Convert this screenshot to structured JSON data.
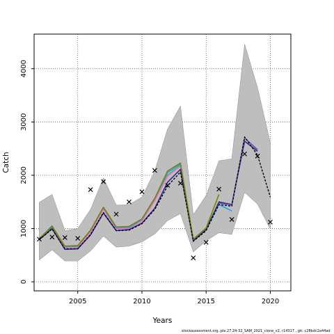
{
  "footer": "stockassessment.org, ple.27.24-32_SAM_2021_clone_v2, r14317 , git: c28bdc2a44ad",
  "chart_data": {
    "type": "line",
    "title": "",
    "xlabel": "Years",
    "ylabel": "Catch",
    "xlim": [
      2001.6,
      2021.6
    ],
    "ylim": [
      -170,
      4650
    ],
    "x_ticks": [
      2005,
      2010,
      2015,
      2020
    ],
    "y_ticks": [
      0,
      1000,
      2000,
      3000,
      4000
    ],
    "grid": "dotted",
    "legend": "none",
    "confidence_band": {
      "years": [
        2002,
        2003,
        2004,
        2005,
        2006,
        2007,
        2008,
        2009,
        2010,
        2011,
        2012,
        2013,
        2014,
        2015,
        2016,
        2017,
        2018,
        2019,
        2020
      ],
      "lower": [
        410,
        600,
        390,
        390,
        580,
        860,
        650,
        670,
        750,
        900,
        1150,
        1280,
        560,
        770,
        920,
        890,
        1680,
        1460,
        990
      ],
      "upper": [
        1490,
        1640,
        960,
        1000,
        1360,
        1950,
        1440,
        1450,
        1590,
        2080,
        2870,
        3300,
        1260,
        1620,
        2270,
        2310,
        4460,
        3650,
        2610
      ],
      "color": "#bebebe"
    },
    "observations": {
      "marker": "x",
      "years": [
        2002,
        2003,
        2004,
        2005,
        2006,
        2007,
        2008,
        2009,
        2010,
        2011,
        2012,
        2013,
        2014,
        2015,
        2016,
        2017,
        2018,
        2019,
        2020
      ],
      "values": [
        800,
        840,
        830,
        815,
        1730,
        1880,
        1270,
        1500,
        1690,
        2090,
        1810,
        1850,
        450,
        740,
        1740,
        1170,
        2400,
        2360,
        1120
      ]
    },
    "series": [
      {
        "color": "#35b779",
        "years": [
          2002,
          2003,
          2004,
          2005,
          2006,
          2007,
          2008,
          2009,
          2010,
          2011,
          2012,
          2013,
          2014
        ],
        "values": [
          800,
          1020,
          650,
          660,
          950,
          1380,
          1010,
          1020,
          1160,
          1550,
          2000,
          2190,
          780
        ]
      },
      {
        "color": "#ff6ec7",
        "years": [
          2002,
          2003,
          2004,
          2005,
          2006,
          2007,
          2008,
          2009,
          2010,
          2011,
          2012,
          2013,
          2014
        ],
        "values": [
          790,
          1000,
          640,
          640,
          930,
          1360,
          990,
          1000,
          1140,
          1520,
          1980,
          2170,
          780
        ]
      },
      {
        "color": "#20a4f3",
        "years": [
          2002,
          2003,
          2004,
          2005,
          2006,
          2007,
          2008,
          2009,
          2010,
          2011,
          2012,
          2013,
          2014,
          2015,
          2016,
          2017
        ],
        "values": [
          800,
          1050,
          660,
          670,
          960,
          1390,
          1010,
          1020,
          1170,
          1560,
          2050,
          2210,
          790,
          1000,
          1450,
          1330
        ]
      },
      {
        "color": "#2a2a8c",
        "years": [
          2002,
          2003,
          2004,
          2005,
          2006,
          2007,
          2008,
          2009,
          2010,
          2011,
          2012,
          2013,
          2014,
          2015,
          2016,
          2017,
          2018,
          2019
        ],
        "values": [
          790,
          1000,
          610,
          620,
          880,
          1290,
          960,
          980,
          1100,
          1380,
          1870,
          2110,
          770,
          980,
          1500,
          1450,
          2640,
          2450
        ]
      },
      {
        "color": "#6b4da8",
        "years": [
          2016,
          2017,
          2018,
          2019
        ],
        "values": [
          1480,
          1440,
          2700,
          2480
        ]
      },
      {
        "color": "#808000",
        "years": [
          2002,
          2003,
          2004,
          2005,
          2006,
          2007,
          2008,
          2009,
          2010,
          2011,
          2012,
          2013,
          2014,
          2015,
          2016
        ],
        "values": [
          810,
          1040,
          670,
          680,
          970,
          1400,
          1030,
          1040,
          1180,
          1570,
          2080,
          2230,
          800,
          1010,
          1640
        ]
      },
      {
        "color": "#000000",
        "dash": true,
        "years": [
          2002,
          2003,
          2004,
          2005,
          2006,
          2007,
          2008,
          2009,
          2010,
          2011,
          2012,
          2013,
          2014,
          2015,
          2016,
          2017,
          2018,
          2019,
          2020
        ],
        "values": [
          790,
          990,
          620,
          620,
          890,
          1300,
          960,
          970,
          1090,
          1360,
          1800,
          2060,
          760,
          960,
          1450,
          1420,
          2720,
          2380,
          1590
        ]
      }
    ]
  }
}
